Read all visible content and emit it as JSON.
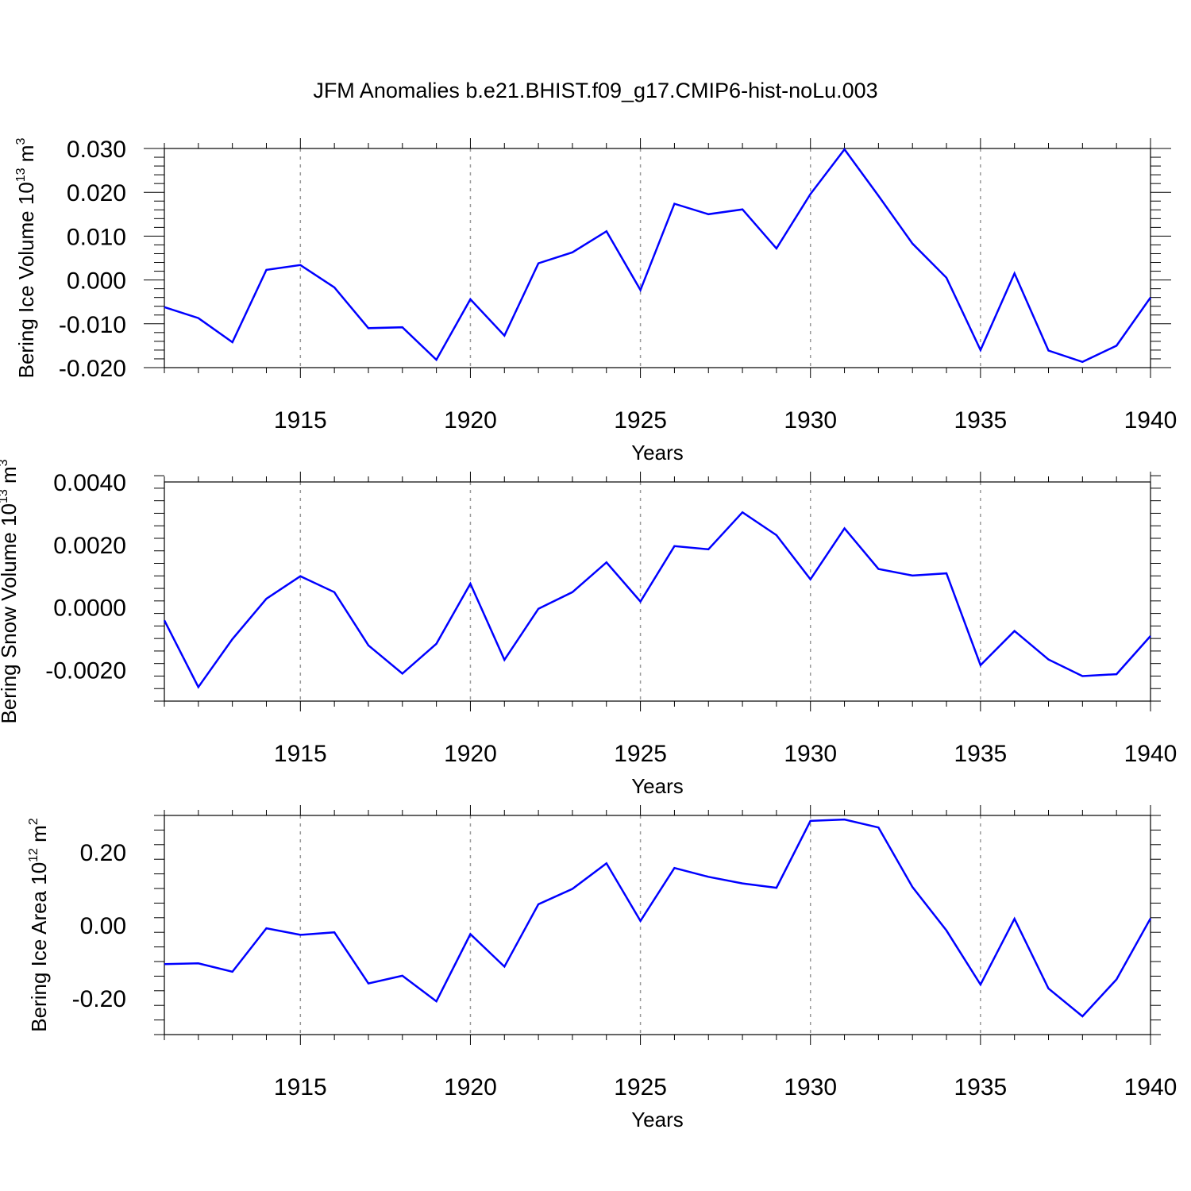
{
  "title": "JFM Anomalies b.e21.BHIST.f09_g17.CMIP6-hist-noLu.003",
  "colors": {
    "line": "#0000ff",
    "axis": "#000000",
    "grid": "#999999"
  },
  "chart_data": [
    {
      "type": "line",
      "title": "JFM Anomalies b.e21.BHIST.f09_g17.CMIP6-hist-noLu.003",
      "xlabel": "Years",
      "ylabel": {
        "text": "Bering Ice Volume 10",
        "exp": "13",
        "unit": " m",
        "unit_exp": "3"
      },
      "xlim": [
        1911,
        1940
      ],
      "ylim": [
        -0.02,
        0.03
      ],
      "yticks": [
        -0.02,
        -0.01,
        0.0,
        0.01,
        0.02,
        0.03
      ],
      "ytick_labels": [
        "-0.020",
        "-0.010",
        "0.000",
        "0.010",
        "0.020",
        "0.030"
      ],
      "xticks": [
        1915,
        1920,
        1925,
        1930,
        1935,
        1940
      ],
      "xtick_labels": [
        "1915",
        "1920",
        "1925",
        "1930",
        "1935",
        "1940"
      ],
      "grid": "vertical dashed at major x ticks",
      "x": [
        1911,
        1912,
        1913,
        1914,
        1915,
        1916,
        1917,
        1918,
        1919,
        1920,
        1921,
        1922,
        1923,
        1924,
        1925,
        1926,
        1927,
        1928,
        1929,
        1930,
        1931,
        1932,
        1933,
        1934,
        1935,
        1936,
        1937,
        1938,
        1939,
        1940
      ],
      "values": [
        -0.0062,
        -0.0087,
        -0.0142,
        0.0023,
        0.0034,
        -0.0017,
        -0.011,
        -0.0108,
        -0.0182,
        -0.0044,
        -0.0127,
        0.0038,
        0.0063,
        0.0111,
        -0.0023,
        0.0174,
        0.015,
        0.0161,
        0.0072,
        0.0196,
        0.0298,
        0.0192,
        0.0083,
        0.0005,
        -0.016,
        0.0015,
        -0.0161,
        -0.0187,
        -0.015,
        -0.004
      ]
    },
    {
      "type": "line",
      "xlabel": "Years",
      "ylabel": {
        "text": "Bering Snow Volume 10",
        "exp": "13",
        "unit": " m",
        "unit_exp": "3"
      },
      "xlim": [
        1911,
        1940
      ],
      "ylim": [
        -0.003,
        0.004
      ],
      "yticks": [
        -0.002,
        0.0,
        0.002,
        0.004
      ],
      "ytick_labels": [
        "-0.0020",
        "0.0000",
        "0.0020",
        "0.0040"
      ],
      "xticks": [
        1915,
        1920,
        1925,
        1930,
        1935,
        1940
      ],
      "xtick_labels": [
        "1915",
        "1920",
        "1925",
        "1930",
        "1935",
        "1940"
      ],
      "grid": "vertical dashed at major x ticks",
      "x": [
        1911,
        1912,
        1913,
        1914,
        1915,
        1916,
        1917,
        1918,
        1919,
        1920,
        1921,
        1922,
        1923,
        1924,
        1925,
        1926,
        1927,
        1928,
        1929,
        1930,
        1931,
        1932,
        1933,
        1934,
        1935,
        1936,
        1937,
        1938,
        1939,
        1940
      ],
      "values": [
        -0.00042,
        -0.00255,
        -0.00102,
        0.00027,
        0.00099,
        0.00048,
        -0.00122,
        -0.00212,
        -0.00117,
        0.00075,
        -0.00168,
        -5e-05,
        0.00048,
        0.00143,
        0.00018,
        0.00195,
        0.00185,
        0.00303,
        0.0023,
        0.00089,
        0.00252,
        0.00122,
        0.00101,
        0.00108,
        -0.00185,
        -0.00076,
        -0.00167,
        -0.0022,
        -0.00214,
        -0.00092
      ]
    },
    {
      "type": "line",
      "xlabel": "Years",
      "ylabel": {
        "text": "Bering Ice Area 10",
        "exp": "12",
        "unit": " m",
        "unit_exp": "2"
      },
      "xlim": [
        1911,
        1940
      ],
      "ylim": [
        -0.3,
        0.3
      ],
      "yticks": [
        -0.2,
        0.0,
        0.2
      ],
      "ytick_labels": [
        "-0.20",
        "0.00",
        "0.20"
      ],
      "xticks": [
        1915,
        1920,
        1925,
        1930,
        1935,
        1940
      ],
      "xtick_labels": [
        "1915",
        "1920",
        "1925",
        "1930",
        "1935",
        "1940"
      ],
      "grid": "vertical dashed at major x ticks",
      "x": [
        1911,
        1912,
        1913,
        1914,
        1915,
        1916,
        1917,
        1918,
        1919,
        1920,
        1921,
        1922,
        1923,
        1924,
        1925,
        1926,
        1927,
        1928,
        1929,
        1930,
        1931,
        1932,
        1933,
        1934,
        1935,
        1936,
        1937,
        1938,
        1939,
        1940
      ],
      "values": [
        -0.107,
        -0.105,
        -0.128,
        -0.009,
        -0.027,
        -0.02,
        -0.16,
        -0.139,
        -0.209,
        -0.025,
        -0.114,
        0.057,
        0.099,
        0.169,
        0.011,
        0.156,
        0.132,
        0.114,
        0.102,
        0.285,
        0.289,
        0.267,
        0.104,
        -0.015,
        -0.163,
        0.017,
        -0.174,
        -0.25,
        -0.149,
        0.018
      ]
    }
  ]
}
